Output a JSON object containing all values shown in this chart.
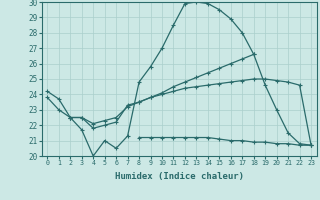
{
  "xlabel": "Humidex (Indice chaleur)",
  "x": [
    0,
    1,
    2,
    3,
    4,
    5,
    6,
    7,
    8,
    9,
    10,
    11,
    12,
    13,
    14,
    15,
    16,
    17,
    18,
    19,
    20,
    21,
    22,
    23
  ],
  "line1": [
    24.2,
    23.7,
    22.5,
    21.7,
    20.0,
    21.0,
    20.5,
    21.3,
    24.8,
    25.8,
    27.0,
    28.5,
    29.9,
    30.0,
    29.9,
    29.5,
    28.9,
    28.0,
    26.6,
    24.6,
    23.0,
    21.5,
    20.8,
    20.7
  ],
  "line2": [
    23.8,
    23.0,
    22.5,
    22.5,
    22.1,
    22.3,
    22.5,
    23.2,
    23.5,
    23.8,
    24.1,
    24.5,
    24.8,
    25.1,
    25.4,
    25.7,
    26.0,
    26.3,
    26.6,
    null,
    null,
    null,
    null,
    null
  ],
  "line3": [
    null,
    null,
    22.5,
    22.5,
    21.8,
    22.0,
    22.2,
    23.3,
    23.5,
    23.8,
    24.0,
    24.2,
    24.4,
    24.5,
    24.6,
    24.7,
    24.8,
    24.9,
    25.0,
    25.0,
    24.9,
    24.8,
    24.6,
    20.7
  ],
  "line4": [
    null,
    null,
    null,
    null,
    null,
    null,
    null,
    null,
    21.2,
    21.2,
    21.2,
    21.2,
    21.2,
    21.2,
    21.2,
    21.1,
    21.0,
    21.0,
    20.9,
    20.9,
    20.8,
    20.8,
    20.7,
    20.7
  ],
  "ylim": [
    20,
    30
  ],
  "xlim_min": -0.5,
  "xlim_max": 23.5,
  "yticks": [
    20,
    21,
    22,
    23,
    24,
    25,
    26,
    27,
    28,
    29,
    30
  ],
  "bg_color": "#cce8e5",
  "grid_color": "#aacfcc",
  "line_color": "#2a6b6b",
  "figsize": [
    3.2,
    2.0
  ],
  "dpi": 100
}
